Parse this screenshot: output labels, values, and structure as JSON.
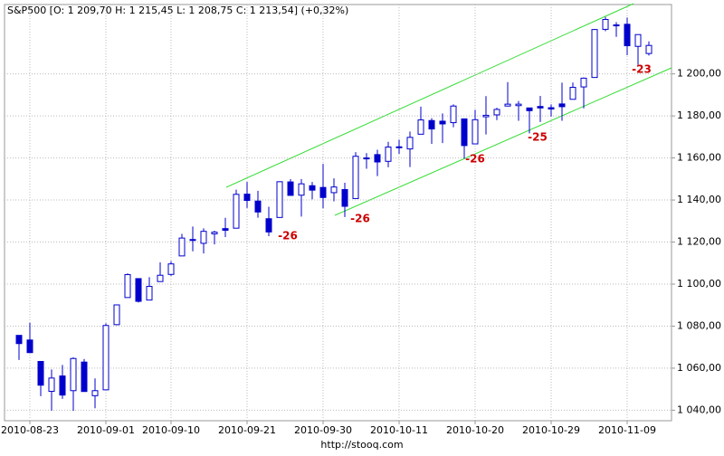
{
  "chart_data": {
    "type": "candlestick",
    "title": "S&P500 [O: 1 209,70  H: 1 215,45  L: 1 208,75  C: 1 213,54] (+0,32%)",
    "footer": "http://stooq.com",
    "categories": [
      null,
      "2010-08-23",
      null,
      null,
      null,
      null,
      null,
      null,
      "2010-09-01",
      null,
      null,
      null,
      null,
      null,
      "2010-09-10",
      null,
      null,
      null,
      null,
      null,
      null,
      "2010-09-21",
      null,
      null,
      null,
      null,
      null,
      null,
      "2010-09-30",
      null,
      null,
      null,
      null,
      null,
      null,
      "2010-10-11",
      null,
      null,
      null,
      null,
      null,
      null,
      "2010-10-20",
      null,
      null,
      null,
      null,
      null,
      null,
      "2010-10-29",
      null,
      null,
      null,
      null,
      null,
      null,
      "2010-11-09",
      null,
      null
    ],
    "open": [
      1075.6,
      1073.4,
      1063.2,
      1048.98,
      1056.3,
      1049.3,
      1062.9,
      1046.9,
      1049.7,
      1080.7,
      1093.6,
      1102.6,
      1092.4,
      1101.2,
      1104.6,
      1113.4,
      1121.2,
      1119.4,
      1123.9,
      1126.4,
      1126.6,
      1142.8,
      1139.5,
      1131.1,
      1131.7,
      1148.6,
      1142.3,
      1146.8,
      1145.97,
      1143.5,
      1144.96,
      1140.7,
      1159.8,
      1161.6,
      1158.4,
      1165.3,
      1164.3,
      1171.3,
      1177.8,
      1177.5,
      1176.8,
      1178.6,
      1166.7,
      1179.6,
      1180.5,
      1184.7,
      1184.9,
      1183.8,
      1184.5,
      1183.9,
      1185.7,
      1187.9,
      1193.8,
      1198.3,
      1221.2,
      1223.2,
      1223.6,
      1213.1,
      1209.7
    ],
    "high": [
      1075.6,
      1081.6,
      1063.2,
      1059.4,
      1061.5,
      1065.2,
      1064.4,
      1055.1,
      1081.3,
      1090.1,
      1105.1,
      1102.6,
      1103.3,
      1110.3,
      1110.9,
      1123.9,
      1127.4,
      1126.5,
      1125.4,
      1131.5,
      1144.9,
      1148.6,
      1144.4,
      1136.8,
      1148.9,
      1149.9,
      1150.0,
      1148.6,
      1157.2,
      1150.3,
      1148.2,
      1162.8,
      1162.3,
      1163.9,
      1167.7,
      1168.7,
      1172.6,
      1184.4,
      1178.9,
      1181.2,
      1185.5,
      1178.6,
      1182.9,
      1189.4,
      1183.9,
      1196.1,
      1187.1,
      1183.8,
      1189.5,
      1185.5,
      1195.8,
      1195.9,
      1198.3,
      1221.3,
      1227.1,
      1224.6,
      1226.8,
      1218.8,
      1215.45
    ],
    "low": [
      1063.9,
      1067.1,
      1046.7,
      1039.8,
      1045.4,
      1039.7,
      1048.8,
      1040.9,
      1049.7,
      1080.4,
      1093.6,
      1091.2,
      1092.4,
      1101.2,
      1103.9,
      1113.4,
      1115.6,
      1114.6,
      1118.9,
      1122.4,
      1126.6,
      1136.2,
      1131.6,
      1122.8,
      1131.7,
      1142.0,
      1132.1,
      1140.3,
      1136.1,
      1139.4,
      1131.9,
      1140.7,
      1154.9,
      1151.4,
      1155.6,
      1162.0,
      1155.7,
      1171.3,
      1166.7,
      1167.1,
      1174.6,
      1159.7,
      1166.7,
      1171.2,
      1178.0,
      1184.7,
      1177.7,
      1171.7,
      1177.1,
      1179.7,
      1177.7,
      1187.9,
      1183.6,
      1198.3,
      1220.3,
      1217.6,
      1208.9,
      1204.3,
      1208.75
    ],
    "close": [
      1071.7,
      1067.4,
      1051.9,
      1055.3,
      1047.2,
      1064.6,
      1048.9,
      1049.3,
      1080.3,
      1090.1,
      1104.5,
      1091.8,
      1098.9,
      1104.2,
      1109.6,
      1121.9,
      1121.1,
      1125.1,
      1124.7,
      1125.6,
      1142.7,
      1139.8,
      1134.3,
      1124.8,
      1148.7,
      1142.2,
      1147.7,
      1144.7,
      1141.2,
      1146.2,
      1137.0,
      1160.8,
      1160.0,
      1158.1,
      1165.2,
      1165.3,
      1169.8,
      1178.1,
      1173.8,
      1176.2,
      1184.7,
      1165.9,
      1178.2,
      1180.3,
      1183.1,
      1185.6,
      1185.6,
      1182.5,
      1183.8,
      1183.3,
      1184.4,
      1193.6,
      1197.96,
      1221.1,
      1225.9,
      1223.3,
      1213.4,
      1218.7,
      1213.54
    ],
    "color": "#0000cc",
    "up_fill": "#ffffff",
    "grid": true,
    "ylim": [
      1035,
      1233
    ],
    "yticks": [
      {
        "value": 1040,
        "label": "1 040,00"
      },
      {
        "value": 1060,
        "label": "1 060,00"
      },
      {
        "value": 1080,
        "label": "1 080,00"
      },
      {
        "value": 1100,
        "label": "1 100,00"
      },
      {
        "value": 1120,
        "label": "1 120,00"
      },
      {
        "value": 1140,
        "label": "1 140,00"
      },
      {
        "value": 1160,
        "label": "1 160,00"
      },
      {
        "value": 1180,
        "label": "1 180,00"
      },
      {
        "value": 1200,
        "label": "1 200,00"
      }
    ],
    "annotations": [
      "-26",
      "-26",
      "-26",
      "-25",
      "-23"
    ],
    "annotation_color": "#cc0000",
    "trendline_color": "#33dd33"
  }
}
